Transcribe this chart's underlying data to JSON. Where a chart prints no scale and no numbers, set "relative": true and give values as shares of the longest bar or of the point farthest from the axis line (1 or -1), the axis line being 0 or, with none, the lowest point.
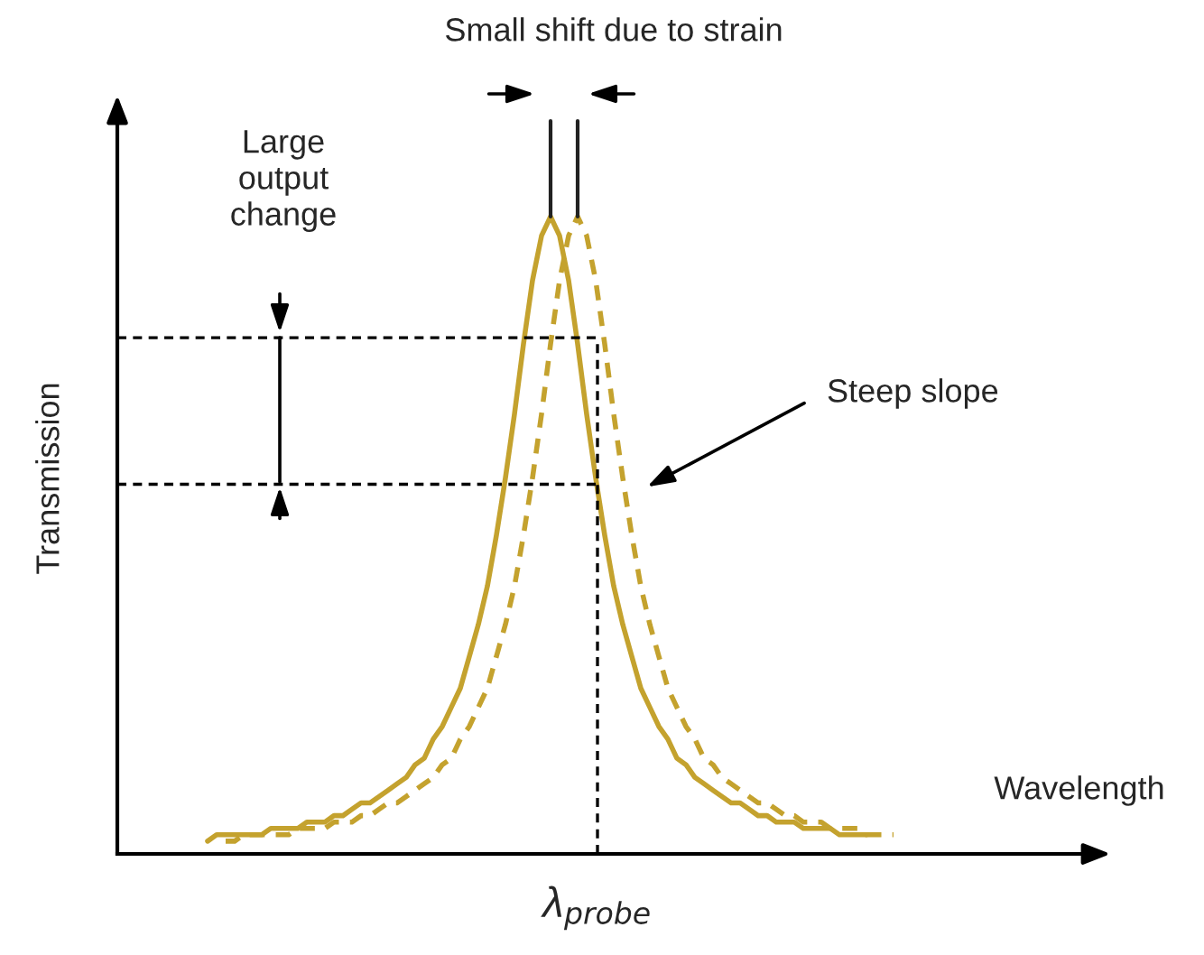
{
  "chart_data": {
    "type": "line",
    "relative": true,
    "xlabel": "Wavelength",
    "ylabel": "Transmission",
    "categories": [
      null,
      null,
      null,
      null,
      null,
      null,
      null,
      null,
      null,
      null,
      null,
      null,
      null,
      null,
      null,
      null,
      null,
      null,
      null,
      null,
      null,
      null,
      null,
      null,
      null,
      null,
      null,
      null,
      null,
      null,
      null,
      null,
      null,
      null,
      null,
      null,
      null,
      null,
      null,
      null,
      null,
      null,
      null,
      null,
      null,
      null,
      null,
      null,
      null,
      null,
      null,
      null,
      null,
      null,
      null,
      null,
      null,
      null,
      null,
      null,
      null,
      null,
      null,
      null,
      null,
      null,
      null,
      null,
      null,
      null,
      null,
      null,
      null,
      null,
      null,
      null,
      null
    ],
    "series": [
      {
        "color": "#c4a22e",
        "line_style": "solid",
        "values": [
          0.02,
          0.03,
          0.03,
          0.03,
          0.03,
          0.03,
          0.03,
          0.04,
          0.04,
          0.04,
          0.04,
          0.05,
          0.05,
          0.05,
          0.06,
          0.06,
          0.07,
          0.08,
          0.08,
          0.09,
          0.1,
          0.11,
          0.12,
          0.14,
          0.15,
          0.18,
          0.2,
          0.23,
          0.26,
          0.31,
          0.36,
          0.42,
          0.5,
          0.59,
          0.69,
          0.8,
          0.9,
          0.97,
          1,
          0.97,
          0.9,
          0.8,
          0.69,
          0.59,
          0.5,
          0.42,
          0.36,
          0.31,
          0.26,
          0.23,
          0.2,
          0.18,
          0.15,
          0.14,
          0.12,
          0.11,
          0.1,
          0.09,
          0.08,
          0.08,
          0.07,
          0.06,
          0.06,
          0.05,
          0.05,
          0.05,
          0.04,
          0.04,
          0.04,
          0.04,
          0.03,
          0.03,
          0.03,
          0.03,
          null,
          null,
          null
        ]
      },
      {
        "color": "#c4a22e",
        "line_style": "dashed",
        "values": [
          null,
          null,
          0.02,
          0.02,
          0.03,
          0.03,
          0.03,
          0.03,
          0.03,
          0.03,
          0.04,
          0.04,
          0.04,
          0.04,
          0.05,
          0.05,
          0.05,
          0.06,
          0.06,
          0.07,
          0.08,
          0.08,
          0.09,
          0.1,
          0.11,
          0.12,
          0.14,
          0.15,
          0.18,
          0.2,
          0.23,
          0.26,
          0.31,
          0.36,
          0.42,
          0.5,
          0.59,
          0.69,
          0.8,
          0.9,
          0.97,
          1,
          0.97,
          0.9,
          0.8,
          0.69,
          0.59,
          0.5,
          0.42,
          0.36,
          0.31,
          0.26,
          0.23,
          0.2,
          0.18,
          0.15,
          0.14,
          0.12,
          0.11,
          0.1,
          0.09,
          0.08,
          0.08,
          0.07,
          0.06,
          0.06,
          0.05,
          0.05,
          0.05,
          0.04,
          0.04,
          0.04,
          0.04,
          0.03,
          0.03,
          0.03,
          0.03
        ]
      }
    ],
    "ref_lines": [
      {
        "axis": "y",
        "value": 0.81,
        "line_style": "dashed",
        "color": "#000000"
      },
      {
        "axis": "y",
        "value": 0.58,
        "line_style": "dashed",
        "color": "#000000"
      }
    ],
    "annotations": [
      "Small shift due to strain",
      "Large output change",
      "Steep slope",
      "λ$_{probe}$"
    ],
    "legend": false
  }
}
